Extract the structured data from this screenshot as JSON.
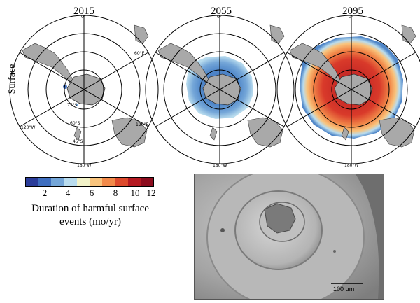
{
  "row_label": "Surface",
  "panels": [
    {
      "year": "2015",
      "coverage": "minimal"
    },
    {
      "year": "2055",
      "coverage": "moderate"
    },
    {
      "year": "2095",
      "coverage": "extensive"
    }
  ],
  "colorbar": {
    "ticks": [
      "2",
      "4",
      "6",
      "8",
      "10",
      "12"
    ],
    "colors": [
      "#2b3d9a",
      "#3f6fc0",
      "#74a6d8",
      "#b9dcee",
      "#f2f2c8",
      "#f9c47d",
      "#f28a4a",
      "#dd4a2c",
      "#b51a22",
      "#8c0c1e"
    ],
    "label_line1": "Duration of harmful surface",
    "label_line2": "events (mo/yr)"
  },
  "map_labels": {
    "top": "0°",
    "bottom": "180°W",
    "left_upper": "60°W",
    "left_lower": "120°W",
    "right_upper": "60°E",
    "right_lower": "120°E",
    "lat_1": "75°S",
    "lat_2": "60°S",
    "lat_3": "45°S"
  },
  "micrograph": {
    "scale_label": "100 μm"
  },
  "colors": {
    "land": "#a9a9a9",
    "grid": "#000000"
  }
}
